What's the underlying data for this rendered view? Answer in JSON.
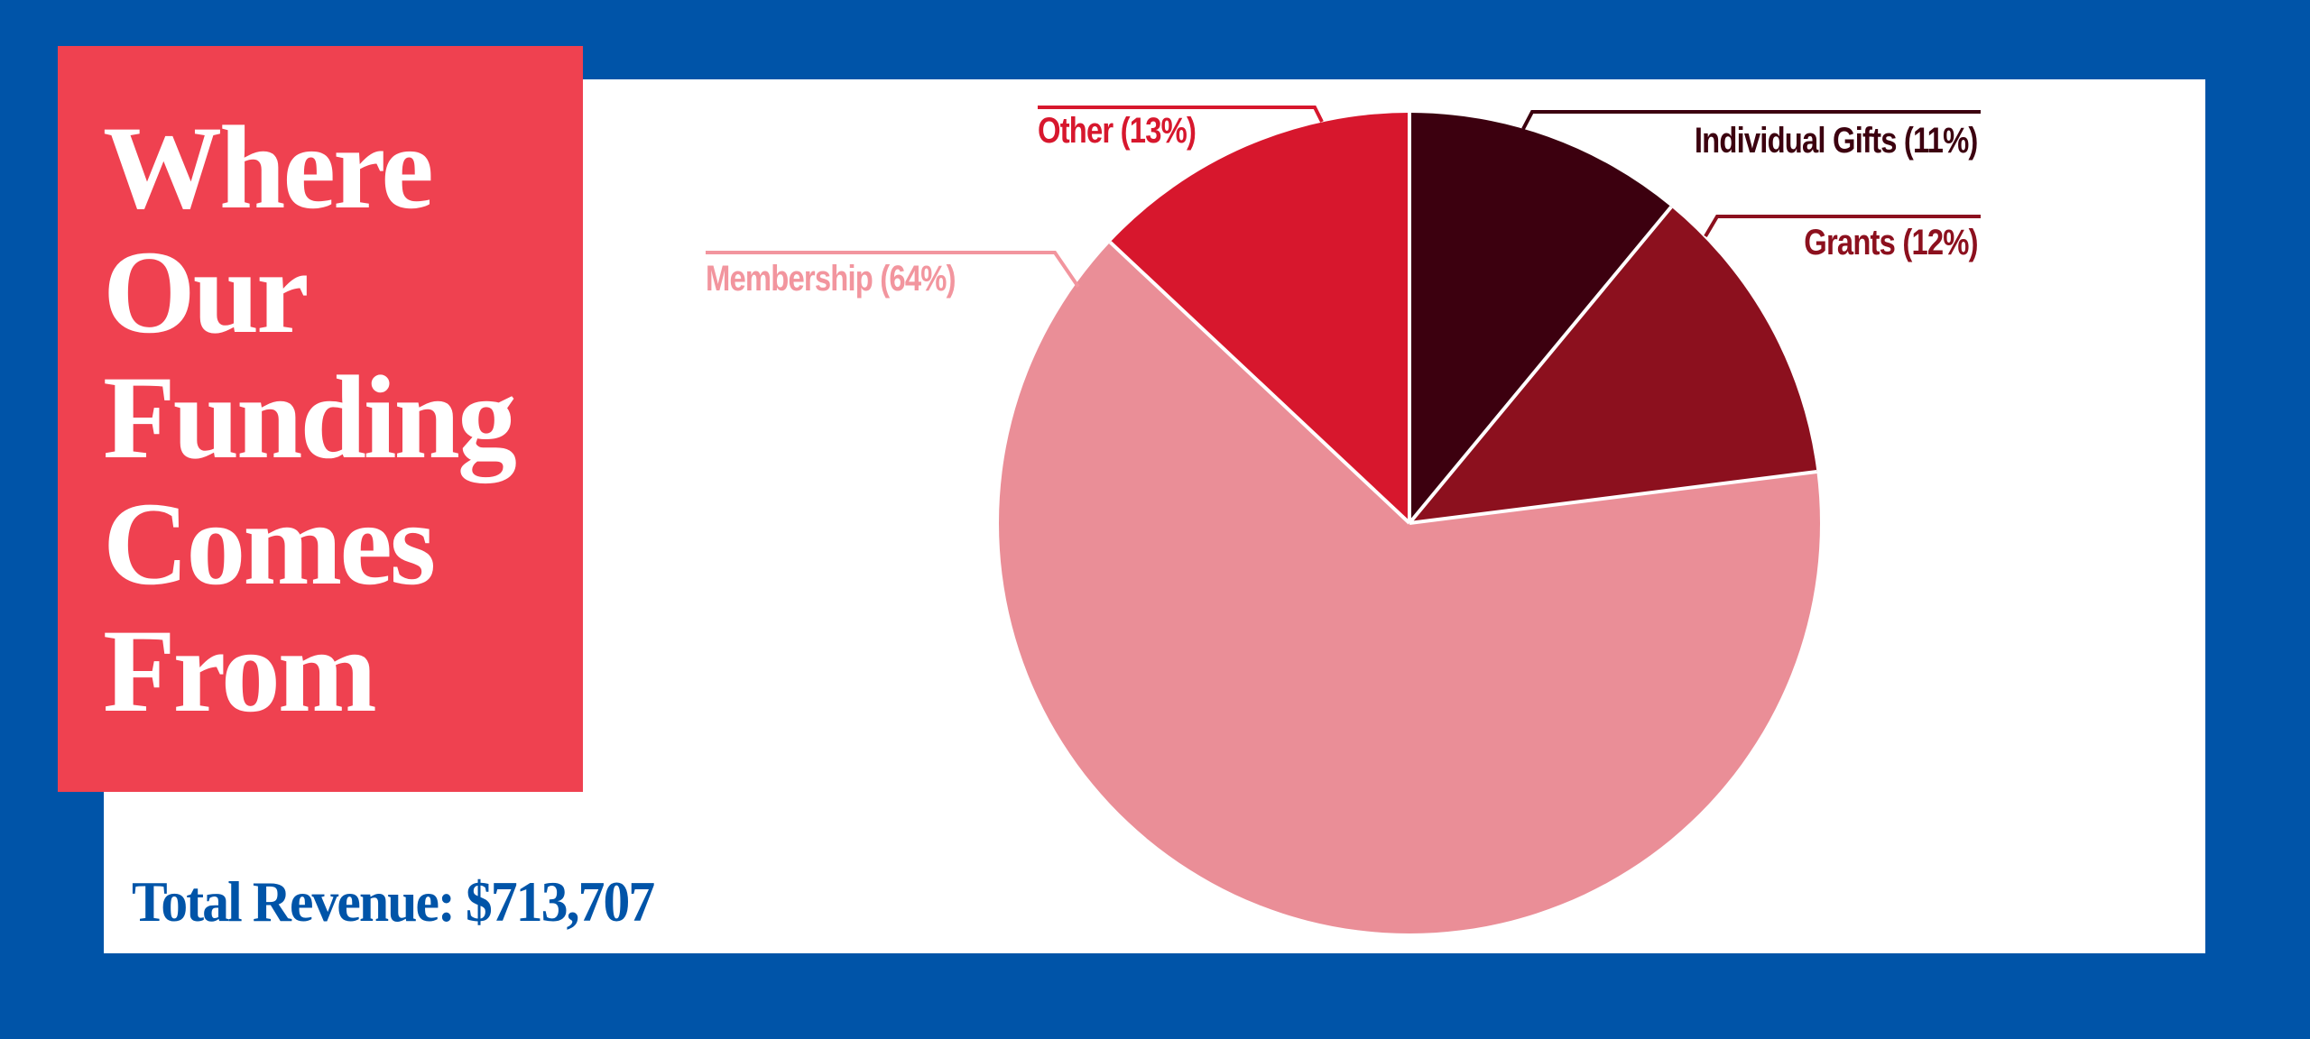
{
  "title": {
    "lines": [
      "Where",
      "Our",
      "Funding",
      "Comes",
      "From"
    ]
  },
  "total_revenue": {
    "label": "Total Revenue: $713,707"
  },
  "colors": {
    "background_blue": "#0054A8",
    "title_box_red": "#EF4150",
    "panel_white": "#FFFFFF",
    "individual_gifts": "#3C000F",
    "grants": "#8C101E",
    "membership": "#EA8E97",
    "other": "#D7172D",
    "membership_label": "#F2959E"
  },
  "labels": {
    "individual_gifts": "Individual Gifts (11%)",
    "grants": "Grants (12%)",
    "membership": "Membership (64%)",
    "other": "Other (13%)"
  },
  "chart_data": {
    "type": "pie",
    "title": "Where Our Funding Comes From",
    "subtitle": "Total Revenue: $713,707",
    "categories": [
      "Individual Gifts",
      "Grants",
      "Membership",
      "Other"
    ],
    "values": [
      11,
      12,
      64,
      13
    ],
    "unit": "%",
    "start_angle": "12 o'clock",
    "direction": "clockwise",
    "colors": [
      "#3C000F",
      "#8C101E",
      "#EA8E97",
      "#D7172D"
    ],
    "legend": "none (direct labels with leader lines)",
    "total": 713707
  }
}
